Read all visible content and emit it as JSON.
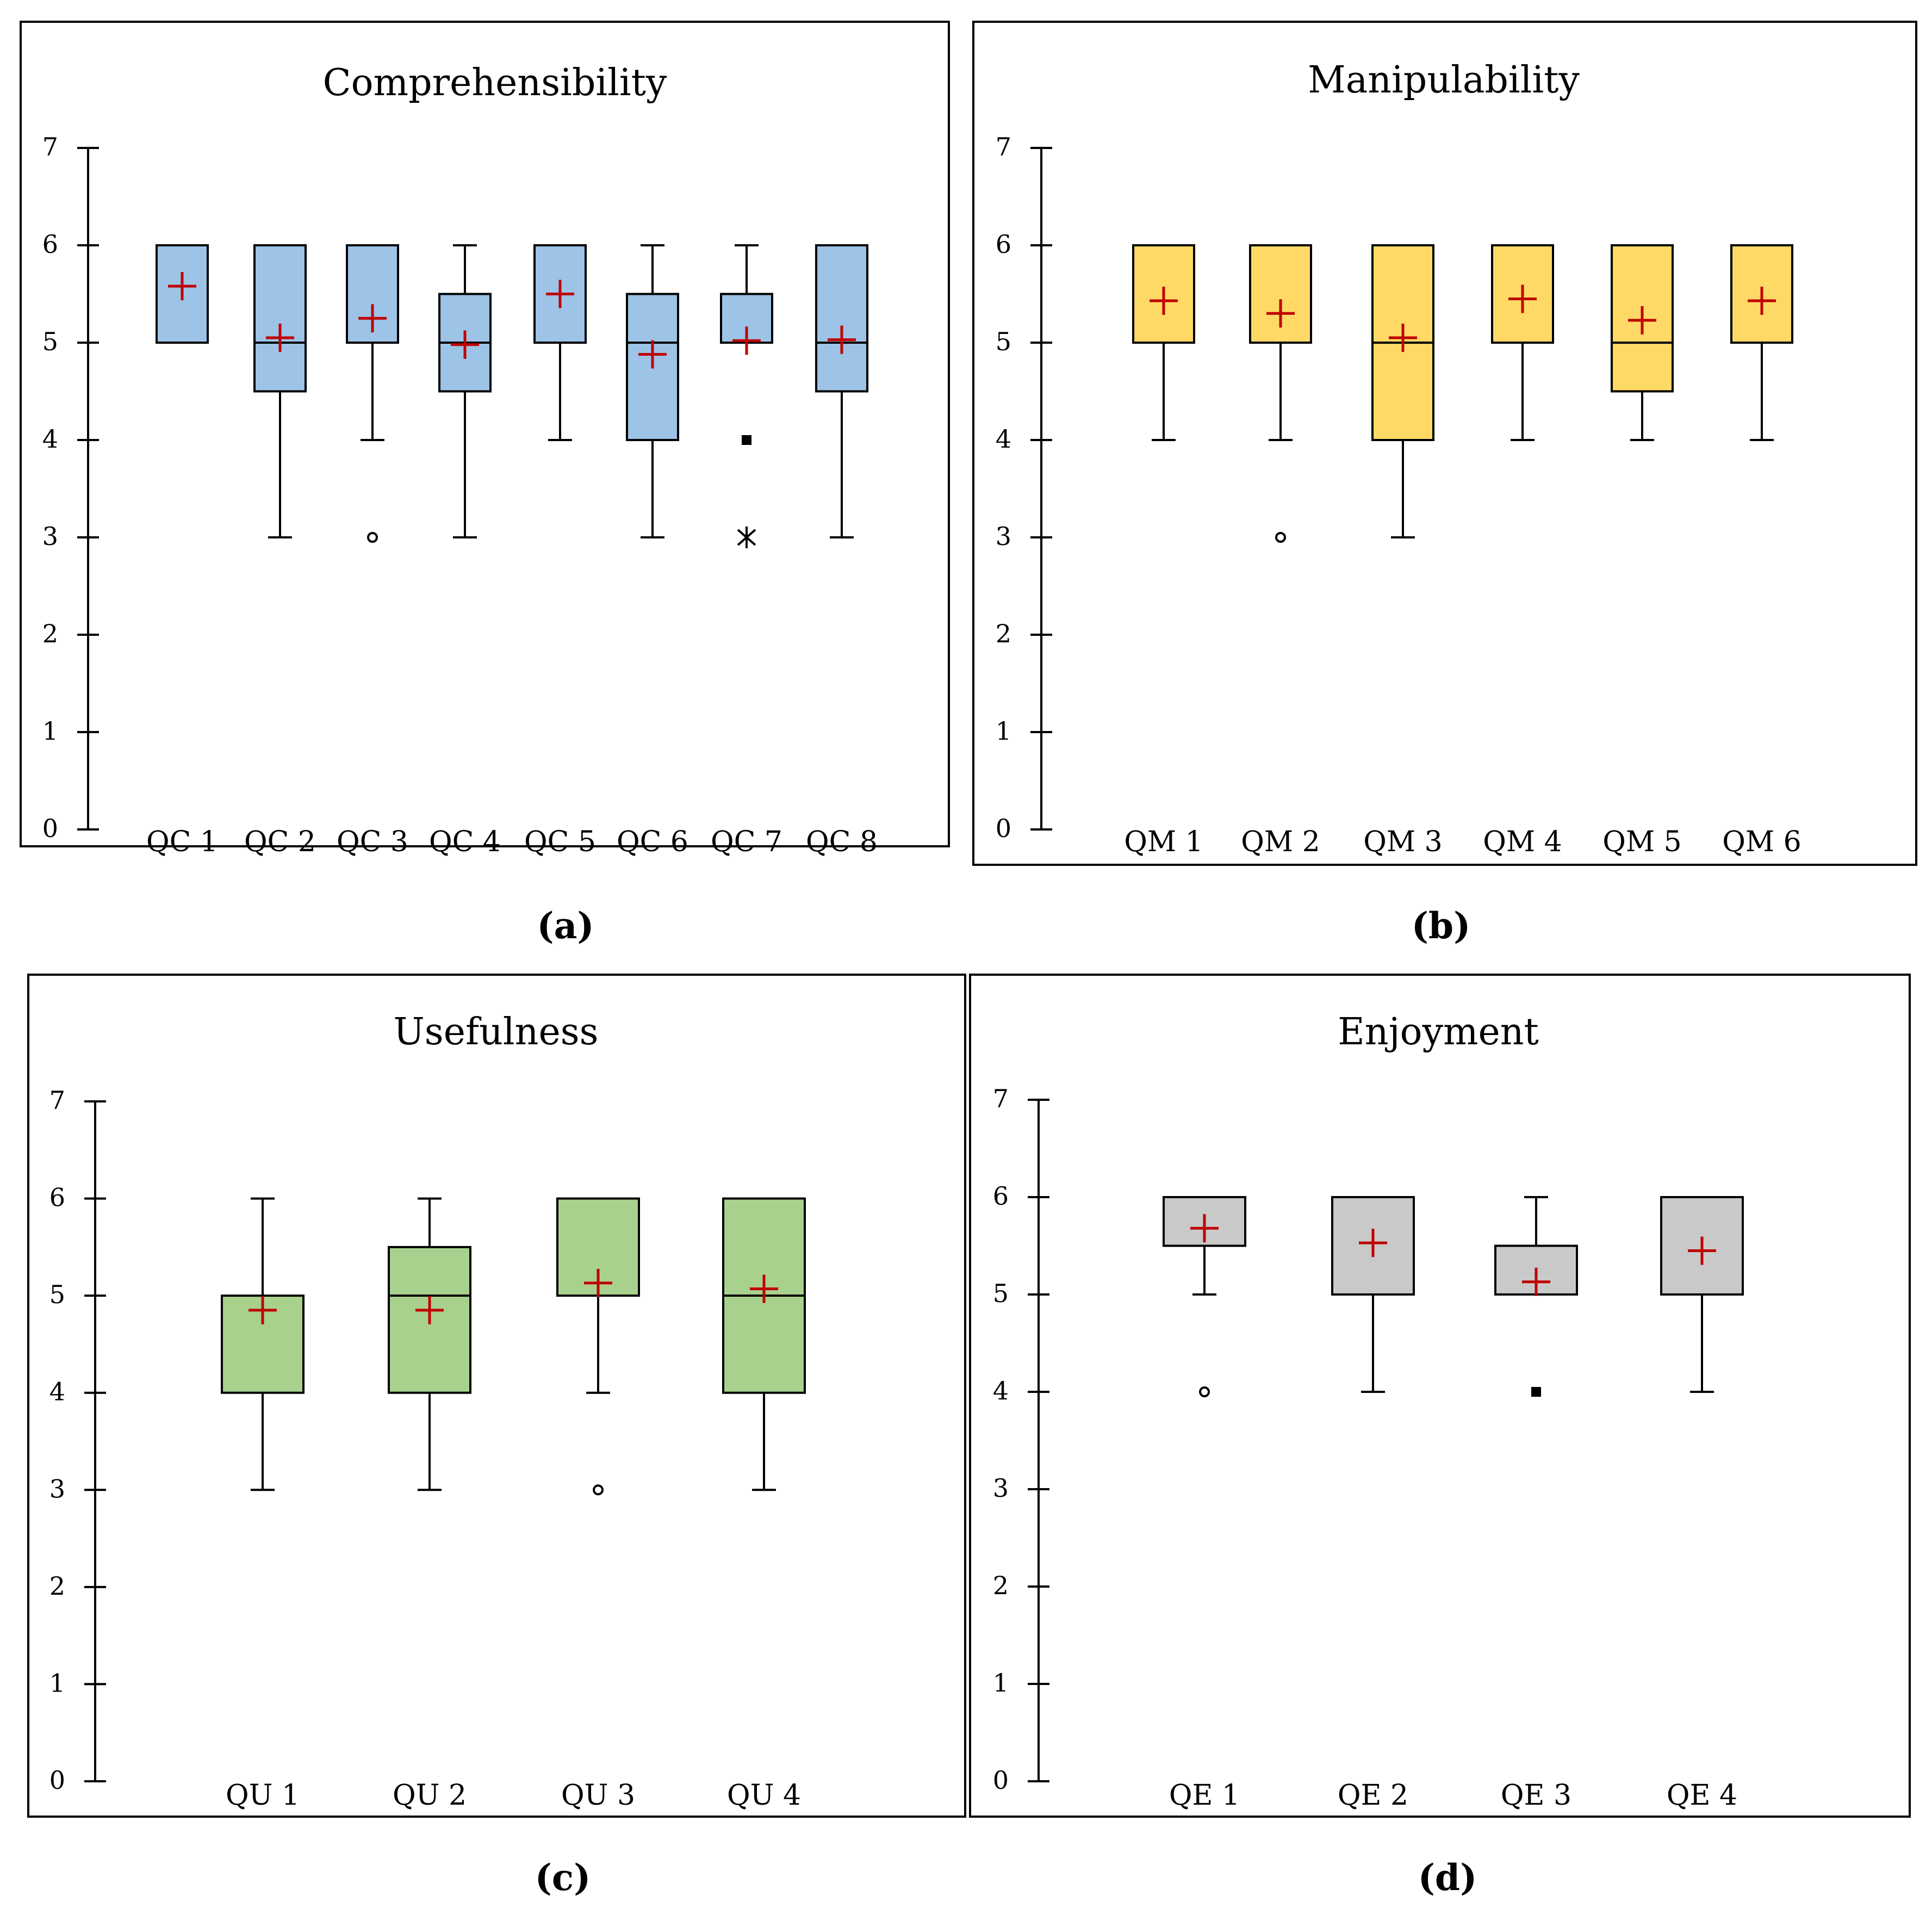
{
  "colors": {
    "comprehensibility": "#9dc3e6",
    "manipulability": "#ffd966",
    "usefulness": "#a9d18e",
    "enjoyment": "#c9c9c9",
    "mean_marker": "#c00000",
    "outline": "#000000"
  },
  "chart_data": [
    {
      "type": "box",
      "panel_label": "(a)",
      "title": "Comprehensibility",
      "ylim": [
        0,
        7
      ],
      "yticks": [
        "0",
        "1",
        "2",
        "3",
        "4",
        "5",
        "6",
        "7"
      ],
      "fill": "#9dc3e6",
      "categories": [
        "QC 1",
        "QC 2",
        "QC 3",
        "QC 4",
        "QC 5",
        "QC 6",
        "QC 7",
        "QC 8"
      ],
      "boxes": [
        {
          "label": "QC 1",
          "min": 5,
          "q1": 5,
          "median": 5,
          "q3": 6,
          "max": 6,
          "mean": 5.58,
          "outliers": []
        },
        {
          "label": "QC 2",
          "min": 3,
          "q1": 4.5,
          "median": 5,
          "q3": 6,
          "max": 6,
          "mean": 5.05,
          "outliers": []
        },
        {
          "label": "QC 3",
          "min": 4,
          "q1": 5,
          "median": 5,
          "q3": 6,
          "max": 6,
          "mean": 5.25,
          "outliers": [
            {
              "value": 3,
              "kind": "circle"
            }
          ]
        },
        {
          "label": "QC 4",
          "min": 3,
          "q1": 4.5,
          "median": 5,
          "q3": 5.5,
          "max": 6,
          "mean": 4.98,
          "outliers": []
        },
        {
          "label": "QC 5",
          "min": 4,
          "q1": 5,
          "median": 5,
          "q3": 6,
          "max": 6,
          "mean": 5.5,
          "outliers": []
        },
        {
          "label": "QC 6",
          "min": 3,
          "q1": 4,
          "median": 5,
          "q3": 5.5,
          "max": 6,
          "mean": 4.88,
          "outliers": []
        },
        {
          "label": "QC 7",
          "min": 5,
          "q1": 5,
          "median": 5,
          "q3": 5.5,
          "max": 6,
          "mean": 5.02,
          "outliers": [
            {
              "value": 4,
              "kind": "square"
            },
            {
              "value": 3,
              "kind": "star"
            }
          ]
        },
        {
          "label": "QC 8",
          "min": 3,
          "q1": 4.5,
          "median": 5,
          "q3": 6,
          "max": 6,
          "mean": 5.03,
          "outliers": []
        }
      ]
    },
    {
      "type": "box",
      "panel_label": "(b)",
      "title": "Manipulability",
      "ylim": [
        0,
        7
      ],
      "yticks": [
        "0",
        "1",
        "2",
        "3",
        "4",
        "5",
        "6",
        "7"
      ],
      "fill": "#ffd966",
      "categories": [
        "QM 1",
        "QM 2",
        "QM 3",
        "QM 4",
        "QM 5",
        "QM 6"
      ],
      "boxes": [
        {
          "label": "QM 1",
          "min": 4,
          "q1": 5,
          "median": 5,
          "q3": 6,
          "max": 6,
          "mean": 5.43,
          "outliers": []
        },
        {
          "label": "QM 2",
          "min": 4,
          "q1": 5,
          "median": 5,
          "q3": 6,
          "max": 6,
          "mean": 5.3,
          "outliers": [
            {
              "value": 3,
              "kind": "circle"
            }
          ]
        },
        {
          "label": "QM 3",
          "min": 3,
          "q1": 4,
          "median": 5,
          "q3": 6,
          "max": 6,
          "mean": 5.05,
          "outliers": []
        },
        {
          "label": "QM 4",
          "min": 4,
          "q1": 5,
          "median": 5,
          "q3": 6,
          "max": 6,
          "mean": 5.45,
          "outliers": []
        },
        {
          "label": "QM 5",
          "min": 4,
          "q1": 4.5,
          "median": 5,
          "q3": 6,
          "max": 6,
          "mean": 5.23,
          "outliers": []
        },
        {
          "label": "QM 6",
          "min": 4,
          "q1": 5,
          "median": 5,
          "q3": 6,
          "max": 6,
          "mean": 5.43,
          "outliers": []
        }
      ]
    },
    {
      "type": "box",
      "panel_label": "(c)",
      "title": "Usefulness",
      "ylim": [
        0,
        7
      ],
      "yticks": [
        "0",
        "1",
        "2",
        "3",
        "4",
        "5",
        "6",
        "7"
      ],
      "fill": "#a9d18e",
      "categories": [
        "QU 1",
        "QU 2",
        "QU 3",
        "QU 4"
      ],
      "boxes": [
        {
          "label": "QU 1",
          "min": 3,
          "q1": 4,
          "median": 4,
          "q3": 5,
          "max": 6,
          "mean": 4.85,
          "outliers": []
        },
        {
          "label": "QU 2",
          "min": 3,
          "q1": 4,
          "median": 5,
          "q3": 5.5,
          "max": 6,
          "mean": 4.85,
          "outliers": []
        },
        {
          "label": "QU 3",
          "min": 4,
          "q1": 5,
          "median": 5,
          "q3": 6,
          "max": 6,
          "mean": 5.13,
          "outliers": [
            {
              "value": 3,
              "kind": "circle"
            }
          ]
        },
        {
          "label": "QU 4",
          "min": 3,
          "q1": 4,
          "median": 5,
          "q3": 6,
          "max": 6,
          "mean": 5.07,
          "outliers": []
        }
      ]
    },
    {
      "type": "box",
      "panel_label": "(d)",
      "title": "Enjoyment",
      "ylim": [
        0,
        7
      ],
      "yticks": [
        "0",
        "1",
        "2",
        "3",
        "4",
        "5",
        "6",
        "7"
      ],
      "fill": "#c9c9c9",
      "categories": [
        "QE 1",
        "QE 2",
        "QE 3",
        "QE 4"
      ],
      "boxes": [
        {
          "label": "QE 1",
          "min": 5,
          "q1": 5.5,
          "median": 5.5,
          "q3": 6,
          "max": 6,
          "mean": 5.68,
          "outliers": [
            {
              "value": 4,
              "kind": "circle"
            }
          ]
        },
        {
          "label": "QE 2",
          "min": 4,
          "q1": 5,
          "median": 5,
          "q3": 6,
          "max": 6,
          "mean": 5.53,
          "outliers": []
        },
        {
          "label": "QE 3",
          "min": 5,
          "q1": 5,
          "median": 5,
          "q3": 5.5,
          "max": 6,
          "mean": 5.13,
          "outliers": [
            {
              "value": 4,
              "kind": "square"
            }
          ]
        },
        {
          "label": "QE 4",
          "min": 4,
          "q1": 5,
          "median": 5,
          "q3": 6,
          "max": 6,
          "mean": 5.45,
          "outliers": []
        }
      ]
    }
  ]
}
